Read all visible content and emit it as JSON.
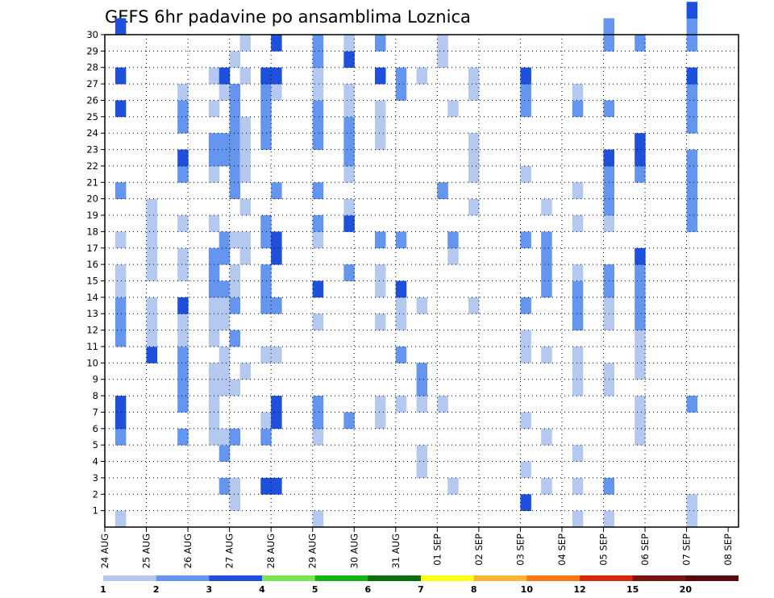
{
  "chart_data": {
    "type": "heatmap",
    "title": "GEFS 6hr padavine po ansamblima Loznica",
    "x_tick_labels": [
      "24 AUG",
      "25 AUG",
      "26 AUG",
      "27 AUG",
      "28 AUG",
      "29 AUG",
      "30 AUG",
      "31 AUG",
      "01 SEP",
      "02 SEP",
      "03 SEP",
      "04 SEP",
      "05 SEP",
      "06 SEP",
      "07 SEP",
      "08 SEP"
    ],
    "x_range_steps": [
      0,
      61
    ],
    "x_step": "6hr",
    "y_tick_labels": [
      "1",
      "2",
      "3",
      "4",
      "5",
      "6",
      "7",
      "8",
      "9",
      "10",
      "11",
      "12",
      "13",
      "14",
      "15",
      "16",
      "17",
      "18",
      "19",
      "20",
      "21",
      "22",
      "23",
      "24",
      "25",
      "26",
      "27",
      "28",
      "29",
      "30"
    ],
    "y_range": [
      0,
      30
    ],
    "y_meaning": "ensemble member",
    "grid": true,
    "colorbar": {
      "labels": [
        "1",
        "2",
        "3",
        "4",
        "5",
        "6",
        "7",
        "8",
        "10",
        "12",
        "15",
        "20"
      ],
      "colors": [
        "#b4c8f0",
        "#6496f0",
        "#1e50dc",
        "#78e650",
        "#14b414",
        "#0a6e0a",
        "#ffff14",
        "#ffb432",
        "#fa7814",
        "#dc280a",
        "#781414"
      ]
    },
    "cells": [
      [
        1,
        0,
        0
      ],
      [
        1,
        5,
        1
      ],
      [
        1,
        6,
        1
      ],
      [
        1,
        6,
        2
      ],
      [
        1,
        7,
        2
      ],
      [
        1,
        11,
        1
      ],
      [
        1,
        12,
        1
      ],
      [
        1,
        13,
        1
      ],
      [
        1,
        14,
        0
      ],
      [
        1,
        15,
        0
      ],
      [
        1,
        17,
        0
      ],
      [
        1,
        20,
        0
      ],
      [
        1,
        20,
        1
      ],
      [
        1,
        25,
        2
      ],
      [
        1,
        27,
        2
      ],
      [
        1,
        30,
        2
      ],
      [
        4,
        10,
        2
      ],
      [
        4,
        11,
        0
      ],
      [
        4,
        12,
        0
      ],
      [
        4,
        13,
        0
      ],
      [
        4,
        15,
        0
      ],
      [
        4,
        16,
        0
      ],
      [
        4,
        17,
        0
      ],
      [
        4,
        18,
        0
      ],
      [
        4,
        19,
        0
      ],
      [
        7,
        5,
        1
      ],
      [
        7,
        7,
        1
      ],
      [
        7,
        8,
        1
      ],
      [
        7,
        9,
        1
      ],
      [
        7,
        10,
        1
      ],
      [
        7,
        11,
        0
      ],
      [
        7,
        12,
        0
      ],
      [
        7,
        13,
        2
      ],
      [
        7,
        15,
        0
      ],
      [
        7,
        16,
        0
      ],
      [
        7,
        18,
        0
      ],
      [
        7,
        21,
        1
      ],
      [
        7,
        22,
        2
      ],
      [
        7,
        24,
        1
      ],
      [
        7,
        25,
        1
      ],
      [
        7,
        26,
        0
      ],
      [
        10,
        5,
        0
      ],
      [
        10,
        6,
        0
      ],
      [
        10,
        7,
        0
      ],
      [
        10,
        8,
        0
      ],
      [
        10,
        9,
        0
      ],
      [
        10,
        11,
        0
      ],
      [
        10,
        12,
        0
      ],
      [
        10,
        13,
        0
      ],
      [
        10,
        14,
        1
      ],
      [
        10,
        15,
        1
      ],
      [
        10,
        16,
        1
      ],
      [
        10,
        18,
        0
      ],
      [
        10,
        21,
        0
      ],
      [
        10,
        22,
        1
      ],
      [
        10,
        23,
        1
      ],
      [
        10,
        25,
        0
      ],
      [
        10,
        27,
        0
      ],
      [
        11,
        2,
        1
      ],
      [
        11,
        4,
        1
      ],
      [
        11,
        5,
        0
      ],
      [
        11,
        8,
        0
      ],
      [
        11,
        9,
        0
      ],
      [
        11,
        10,
        0
      ],
      [
        11,
        12,
        0
      ],
      [
        11,
        13,
        0
      ],
      [
        11,
        14,
        1
      ],
      [
        11,
        16,
        1
      ],
      [
        11,
        17,
        1
      ],
      [
        11,
        22,
        1
      ],
      [
        11,
        23,
        1
      ],
      [
        11,
        26,
        0
      ],
      [
        11,
        27,
        2
      ],
      [
        12,
        1,
        0
      ],
      [
        12,
        2,
        0
      ],
      [
        12,
        5,
        1
      ],
      [
        12,
        8,
        0
      ],
      [
        12,
        11,
        1
      ],
      [
        12,
        13,
        1
      ],
      [
        12,
        14,
        0
      ],
      [
        12,
        15,
        0
      ],
      [
        12,
        17,
        0
      ],
      [
        12,
        20,
        1
      ],
      [
        12,
        21,
        1
      ],
      [
        12,
        22,
        1
      ],
      [
        12,
        23,
        1
      ],
      [
        12,
        24,
        1
      ],
      [
        12,
        25,
        1
      ],
      [
        12,
        26,
        1
      ],
      [
        12,
        28,
        0
      ],
      [
        13,
        9,
        0
      ],
      [
        13,
        16,
        0
      ],
      [
        13,
        17,
        0
      ],
      [
        13,
        19,
        0
      ],
      [
        13,
        21,
        0
      ],
      [
        13,
        22,
        0
      ],
      [
        13,
        23,
        0
      ],
      [
        13,
        24,
        0
      ],
      [
        13,
        27,
        0
      ],
      [
        13,
        29,
        0
      ],
      [
        15,
        2,
        2
      ],
      [
        15,
        5,
        1
      ],
      [
        15,
        6,
        0
      ],
      [
        15,
        10,
        0
      ],
      [
        15,
        13,
        1
      ],
      [
        15,
        14,
        1
      ],
      [
        15,
        15,
        1
      ],
      [
        15,
        17,
        1
      ],
      [
        15,
        18,
        1
      ],
      [
        15,
        23,
        1
      ],
      [
        15,
        24,
        1
      ],
      [
        15,
        25,
        1
      ],
      [
        15,
        26,
        1
      ],
      [
        15,
        27,
        2
      ],
      [
        16,
        2,
        2
      ],
      [
        16,
        6,
        2
      ],
      [
        16,
        7,
        2
      ],
      [
        16,
        10,
        0
      ],
      [
        16,
        13,
        1
      ],
      [
        16,
        16,
        2
      ],
      [
        16,
        17,
        2
      ],
      [
        16,
        20,
        1
      ],
      [
        16,
        26,
        0
      ],
      [
        16,
        27,
        2
      ],
      [
        16,
        29,
        2
      ],
      [
        20,
        0,
        0
      ],
      [
        20,
        5,
        0
      ],
      [
        20,
        6,
        1
      ],
      [
        20,
        7,
        1
      ],
      [
        20,
        12,
        0
      ],
      [
        20,
        14,
        2
      ],
      [
        20,
        17,
        0
      ],
      [
        20,
        18,
        1
      ],
      [
        20,
        20,
        1
      ],
      [
        20,
        23,
        1
      ],
      [
        20,
        24,
        1
      ],
      [
        20,
        25,
        1
      ],
      [
        20,
        26,
        0
      ],
      [
        20,
        27,
        0
      ],
      [
        20,
        28,
        1
      ],
      [
        20,
        29,
        1
      ],
      [
        23,
        6,
        1
      ],
      [
        23,
        15,
        1
      ],
      [
        23,
        18,
        2
      ],
      [
        23,
        19,
        0
      ],
      [
        23,
        21,
        0
      ],
      [
        23,
        22,
        1
      ],
      [
        23,
        23,
        1
      ],
      [
        23,
        24,
        1
      ],
      [
        23,
        25,
        0
      ],
      [
        23,
        26,
        0
      ],
      [
        23,
        28,
        2
      ],
      [
        23,
        29,
        0
      ],
      [
        26,
        6,
        0
      ],
      [
        26,
        7,
        0
      ],
      [
        26,
        12,
        0
      ],
      [
        26,
        14,
        0
      ],
      [
        26,
        15,
        0
      ],
      [
        26,
        17,
        1
      ],
      [
        26,
        23,
        0
      ],
      [
        26,
        24,
        0
      ],
      [
        26,
        25,
        0
      ],
      [
        26,
        27,
        2
      ],
      [
        26,
        29,
        1
      ],
      [
        28,
        7,
        0
      ],
      [
        28,
        10,
        1
      ],
      [
        28,
        12,
        0
      ],
      [
        28,
        13,
        0
      ],
      [
        28,
        14,
        2
      ],
      [
        28,
        17,
        1
      ],
      [
        28,
        26,
        1
      ],
      [
        28,
        27,
        1
      ],
      [
        30,
        3,
        0
      ],
      [
        30,
        4,
        0
      ],
      [
        30,
        7,
        0
      ],
      [
        30,
        8,
        1
      ],
      [
        30,
        9,
        1
      ],
      [
        30,
        13,
        0
      ],
      [
        30,
        27,
        0
      ],
      [
        32,
        7,
        0
      ],
      [
        32,
        20,
        1
      ],
      [
        32,
        28,
        0
      ],
      [
        32,
        29,
        0
      ],
      [
        33,
        2,
        0
      ],
      [
        33,
        16,
        0
      ],
      [
        33,
        17,
        1
      ],
      [
        33,
        25,
        0
      ],
      [
        35,
        13,
        0
      ],
      [
        35,
        19,
        0
      ],
      [
        35,
        21,
        0
      ],
      [
        35,
        22,
        0
      ],
      [
        35,
        23,
        0
      ],
      [
        35,
        26,
        0
      ],
      [
        35,
        27,
        0
      ],
      [
        40,
        1,
        2
      ],
      [
        40,
        3,
        0
      ],
      [
        40,
        6,
        0
      ],
      [
        40,
        10,
        0
      ],
      [
        40,
        11,
        0
      ],
      [
        40,
        13,
        1
      ],
      [
        40,
        17,
        1
      ],
      [
        40,
        21,
        0
      ],
      [
        40,
        25,
        1
      ],
      [
        40,
        26,
        1
      ],
      [
        40,
        27,
        2
      ],
      [
        42,
        2,
        0
      ],
      [
        42,
        5,
        0
      ],
      [
        42,
        10,
        0
      ],
      [
        42,
        14,
        1
      ],
      [
        42,
        15,
        1
      ],
      [
        42,
        16,
        1
      ],
      [
        42,
        17,
        1
      ],
      [
        42,
        19,
        0
      ],
      [
        45,
        0,
        0
      ],
      [
        45,
        2,
        0
      ],
      [
        45,
        4,
        0
      ],
      [
        45,
        8,
        0
      ],
      [
        45,
        9,
        0
      ],
      [
        45,
        10,
        0
      ],
      [
        45,
        12,
        1
      ],
      [
        45,
        13,
        1
      ],
      [
        45,
        14,
        1
      ],
      [
        45,
        15,
        0
      ],
      [
        45,
        18,
        0
      ],
      [
        45,
        20,
        0
      ],
      [
        45,
        25,
        1
      ],
      [
        45,
        26,
        0
      ],
      [
        48,
        0,
        0
      ],
      [
        48,
        2,
        1
      ],
      [
        48,
        8,
        0
      ],
      [
        48,
        9,
        0
      ],
      [
        48,
        12,
        0
      ],
      [
        48,
        13,
        0
      ],
      [
        48,
        14,
        1
      ],
      [
        48,
        15,
        1
      ],
      [
        48,
        18,
        0
      ],
      [
        48,
        19,
        1
      ],
      [
        48,
        20,
        1
      ],
      [
        48,
        21,
        1
      ],
      [
        48,
        22,
        2
      ],
      [
        48,
        25,
        1
      ],
      [
        48,
        29,
        1
      ],
      [
        48,
        30,
        1
      ],
      [
        51,
        5,
        0
      ],
      [
        51,
        6,
        0
      ],
      [
        51,
        7,
        0
      ],
      [
        51,
        9,
        0
      ],
      [
        51,
        10,
        0
      ],
      [
        51,
        11,
        0
      ],
      [
        51,
        12,
        1
      ],
      [
        51,
        13,
        1
      ],
      [
        51,
        14,
        1
      ],
      [
        51,
        15,
        1
      ],
      [
        51,
        16,
        2
      ],
      [
        51,
        21,
        1
      ],
      [
        51,
        22,
        2
      ],
      [
        51,
        23,
        2
      ],
      [
        51,
        29,
        1
      ],
      [
        56,
        0,
        0
      ],
      [
        56,
        1,
        0
      ],
      [
        56,
        7,
        1
      ],
      [
        56,
        18,
        1
      ],
      [
        56,
        19,
        1
      ],
      [
        56,
        20,
        1
      ],
      [
        56,
        21,
        1
      ],
      [
        56,
        22,
        1
      ],
      [
        56,
        24,
        1
      ],
      [
        56,
        25,
        1
      ],
      [
        56,
        26,
        1
      ],
      [
        56,
        27,
        2
      ],
      [
        56,
        29,
        1
      ],
      [
        56,
        30,
        1
      ],
      [
        56,
        31,
        2
      ]
    ]
  }
}
